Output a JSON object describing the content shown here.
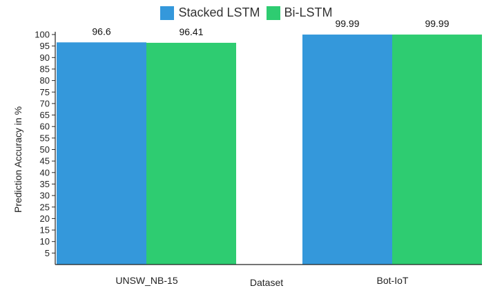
{
  "chart_data": {
    "type": "bar",
    "categories": [
      "UNSW_NB-15",
      "Bot-IoT"
    ],
    "series": [
      {
        "name": "Stacked LSTM",
        "values": [
          96.6,
          99.99
        ],
        "color": "#3498db"
      },
      {
        "name": "Bi-LSTM",
        "values": [
          96.41,
          99.99
        ],
        "color": "#2ecc71"
      }
    ],
    "data_labels": [
      [
        "96.6",
        "99.99"
      ],
      [
        "96.41",
        "99.99"
      ]
    ],
    "title": "",
    "xlabel": "Dataset",
    "ylabel": "Prediction Accuracy in %",
    "ylim": [
      0,
      100
    ],
    "yticks": [
      5,
      10,
      15,
      20,
      25,
      30,
      35,
      40,
      45,
      50,
      55,
      60,
      65,
      70,
      75,
      80,
      85,
      90,
      95,
      100
    ],
    "legend_position": "top-center",
    "grid": false
  }
}
